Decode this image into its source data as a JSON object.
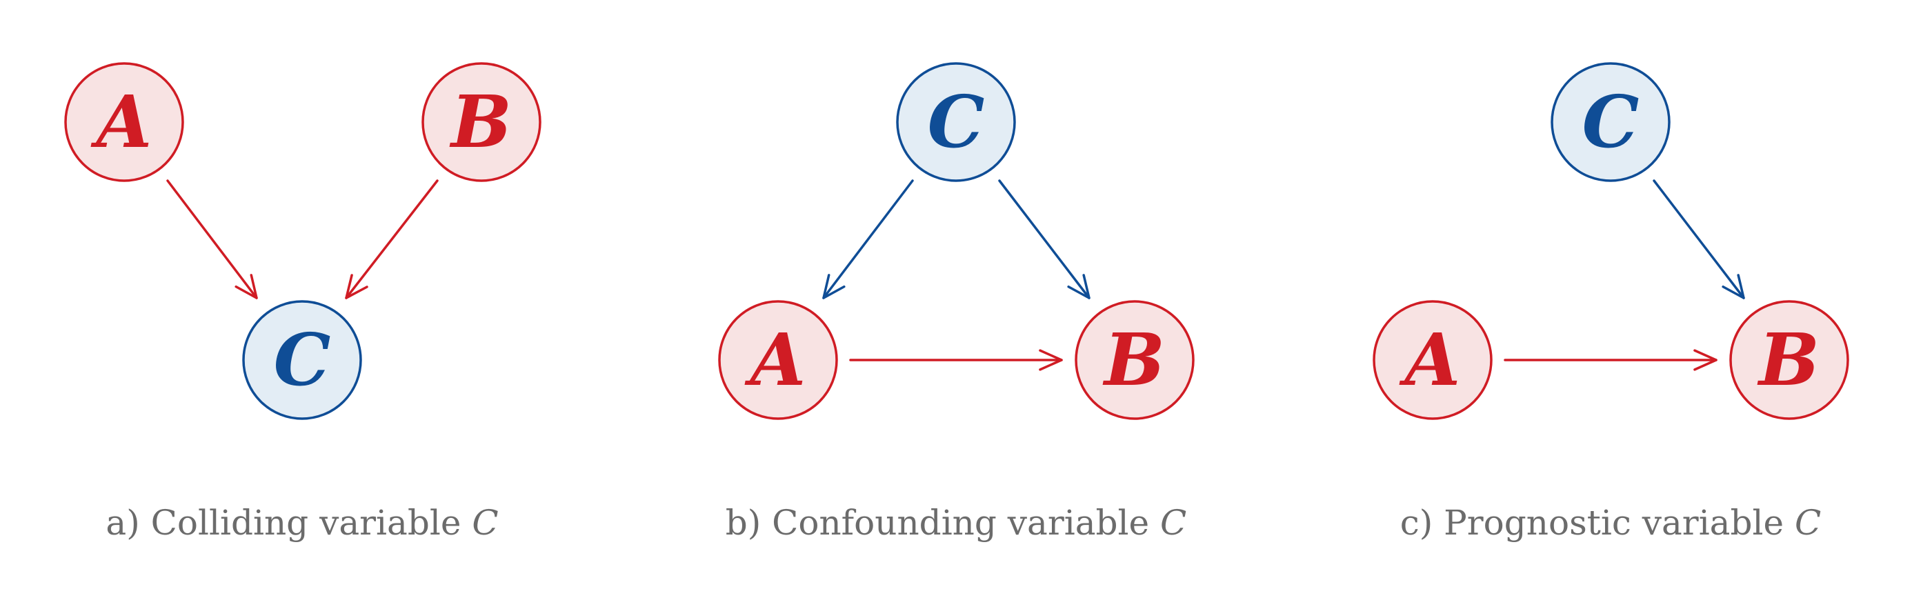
{
  "colors": {
    "red_stroke": "#d01c24",
    "red_fill": "#f8e3e3",
    "blue_stroke": "#0f4d96",
    "blue_fill": "#e3edf5",
    "caption": "#6b6b6b"
  },
  "panels": [
    {
      "id": "colliding",
      "nodes": [
        {
          "label": "A",
          "color": "red"
        },
        {
          "label": "B",
          "color": "red"
        },
        {
          "label": "C",
          "color": "blue"
        }
      ],
      "edges": [
        {
          "from": "A",
          "to": "C",
          "color": "red"
        },
        {
          "from": "B",
          "to": "C",
          "color": "red"
        }
      ],
      "caption": {
        "prefix": "a) Colliding variable ",
        "var": "C"
      }
    },
    {
      "id": "confounding",
      "nodes": [
        {
          "label": "C",
          "color": "blue"
        },
        {
          "label": "A",
          "color": "red"
        },
        {
          "label": "B",
          "color": "red"
        }
      ],
      "edges": [
        {
          "from": "C",
          "to": "A",
          "color": "blue"
        },
        {
          "from": "C",
          "to": "B",
          "color": "blue"
        },
        {
          "from": "A",
          "to": "B",
          "color": "red"
        }
      ],
      "caption": {
        "prefix": "b) Confounding variable ",
        "var": "C"
      }
    },
    {
      "id": "prognostic",
      "nodes": [
        {
          "label": "C",
          "color": "blue"
        },
        {
          "label": "A",
          "color": "red"
        },
        {
          "label": "B",
          "color": "red"
        }
      ],
      "edges": [
        {
          "from": "C",
          "to": "B",
          "color": "blue"
        },
        {
          "from": "A",
          "to": "B",
          "color": "red"
        }
      ],
      "caption": {
        "prefix": "c) Prognostic variable ",
        "var": "C"
      }
    }
  ]
}
